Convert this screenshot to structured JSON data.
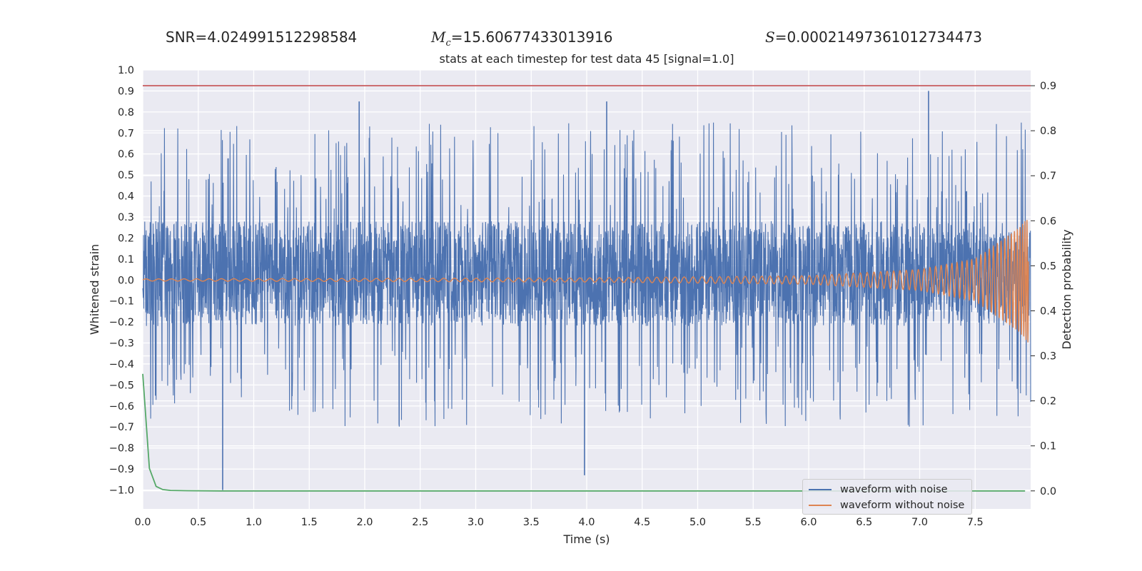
{
  "header": {
    "snr_label": "SNR=4.024991512298584",
    "mc_symbol": "M",
    "mc_sub": "c",
    "mc_value": "=15.60677433013916",
    "s_symbol": "S",
    "s_value": "=0.00021497361012734473"
  },
  "chart_data": {
    "type": "line",
    "title": "stats at each timestep for test data 45 [signal=1.0]",
    "xlabel": "Time (s)",
    "ylabel_left": "Whitened strain",
    "ylabel_right": "Detection probability",
    "xlim": [
      0.0,
      8.0
    ],
    "ylim_left": [
      -1.09,
      1.0
    ],
    "ylim_right": [
      -0.04,
      0.935
    ],
    "x_ticks": [
      "0.0",
      "0.5",
      "1.0",
      "1.5",
      "2.0",
      "2.5",
      "3.0",
      "3.5",
      "4.0",
      "4.5",
      "5.0",
      "5.5",
      "6.0",
      "6.5",
      "7.0",
      "7.5"
    ],
    "y_ticks_left": [
      "1.0",
      "0.9",
      "0.8",
      "0.7",
      "0.6",
      "0.5",
      "0.4",
      "0.3",
      "0.2",
      "0.1",
      "0.0",
      "−0.1",
      "−0.2",
      "−0.3",
      "−0.4",
      "−0.5",
      "−0.6",
      "−0.7",
      "−0.8",
      "−0.9",
      "−1.0"
    ],
    "y_ticks_right": [
      "0.9",
      "0.8",
      "0.7",
      "0.6",
      "0.5",
      "0.4",
      "0.3",
      "0.2",
      "0.1",
      "0.0"
    ],
    "grid": true,
    "legend_position": "lower-right",
    "colors": {
      "background": "#eaeaf2",
      "noisy": "#4c72b0",
      "clean": "#dd8452",
      "probability": "#55a868",
      "threshold": "#c44e52"
    },
    "series": [
      {
        "name": "waveform with noise",
        "axis": "left",
        "x_range": [
          0.0,
          8.0
        ],
        "dense_band": [
          -0.22,
          0.28
        ],
        "typical_peak_range": [
          -0.7,
          0.75
        ],
        "notable_peaks": [
          {
            "x": 0.72,
            "y": -1.0
          },
          {
            "x": 1.95,
            "y": 0.85
          },
          {
            "x": 3.98,
            "y": -0.93
          },
          {
            "x": 4.18,
            "y": 0.85
          },
          {
            "x": 7.08,
            "y": 0.9
          }
        ]
      },
      {
        "name": "waveform without noise",
        "axis": "left",
        "description_points": [
          {
            "x": 0.0,
            "amplitude": 0.005
          },
          {
            "x": 4.0,
            "amplitude": 0.01
          },
          {
            "x": 6.0,
            "amplitude": 0.02
          },
          {
            "x": 7.0,
            "amplitude": 0.05
          },
          {
            "x": 7.5,
            "amplitude": 0.1
          },
          {
            "x": 7.9,
            "amplitude": 0.25
          },
          {
            "x": 7.98,
            "amplitude": 0.3
          }
        ]
      },
      {
        "axis": "right",
        "x": [
          0.0,
          0.06,
          0.12,
          0.18,
          0.25,
          0.4,
          0.7,
          1.0,
          3.0,
          5.0,
          7.0,
          7.95
        ],
        "y": [
          0.26,
          0.05,
          0.01,
          0.003,
          0.001,
          0.0005,
          0.0,
          0.0,
          0.0,
          0.0,
          0.0,
          0.0
        ]
      },
      {
        "axis": "right",
        "y": 0.9
      }
    ]
  }
}
